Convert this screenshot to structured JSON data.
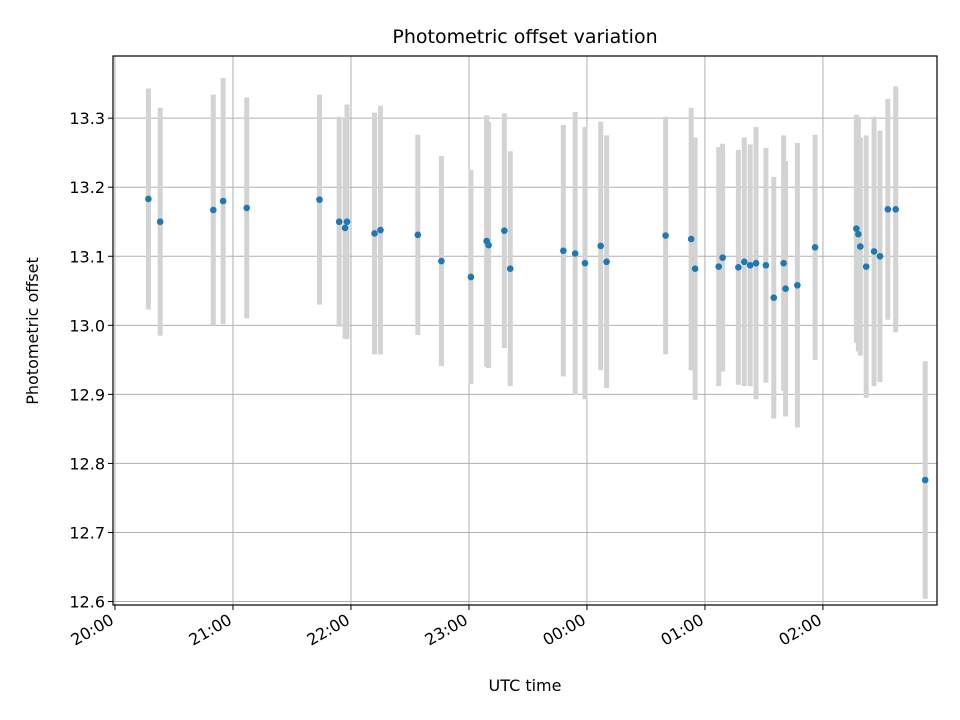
{
  "chart_data": {
    "type": "scatter",
    "title": "Photometric offset variation",
    "xlabel": "UTC time",
    "ylabel": "Photometric offset",
    "grid": true,
    "colors": {
      "point": "#1f77b4",
      "errorbar": "#d3d3d3",
      "grid": "#b0b0b0"
    },
    "x_ticks": [
      "20:00",
      "21:00",
      "22:00",
      "23:00",
      "00:00",
      "01:00",
      "02:00"
    ],
    "y_ticks": [
      "12.6",
      "12.7",
      "12.8",
      "12.9",
      "13.0",
      "13.1",
      "13.2",
      "13.3"
    ],
    "xlim": [
      "19:59",
      "26:58"
    ],
    "ylim": [
      12.595,
      13.39
    ],
    "series": [
      {
        "x": [
          "20:17",
          "20:23",
          "20:50",
          "20:55",
          "21:07",
          "21:44",
          "21:54",
          "21:57",
          "21:58",
          "22:12",
          "22:15",
          "22:34",
          "22:46",
          "23:01",
          "23:09",
          "23:10",
          "23:18",
          "23:21",
          "23:48",
          "23:54",
          "23:59",
          "24:07",
          "24:10",
          "24:40",
          "24:53",
          "24:55",
          "25:07",
          "25:09",
          "25:17",
          "25:20",
          "25:23",
          "25:26",
          "25:31",
          "25:35",
          "25:40",
          "25:41",
          "25:47",
          "25:56",
          "26:17",
          "26:18",
          "26:19",
          "26:22",
          "26:26",
          "26:29",
          "26:33",
          "26:37",
          "26:52"
        ],
        "y": [
          13.183,
          13.15,
          13.167,
          13.18,
          13.17,
          13.182,
          13.15,
          13.141,
          13.15,
          13.133,
          13.138,
          13.131,
          13.093,
          13.07,
          13.122,
          13.116,
          13.137,
          13.082,
          13.108,
          13.104,
          13.09,
          13.115,
          13.092,
          13.13,
          13.125,
          13.082,
          13.085,
          13.098,
          13.084,
          13.092,
          13.087,
          13.09,
          13.087,
          13.04,
          13.09,
          13.053,
          13.058,
          13.113,
          13.14,
          13.132,
          13.114,
          13.085,
          13.107,
          13.1,
          13.168,
          13.168,
          12.776
        ],
        "err": [
          0.16,
          0.165,
          0.167,
          0.178,
          0.16,
          0.152,
          0.152,
          0.16,
          0.17,
          0.175,
          0.18,
          0.145,
          0.152,
          0.155,
          0.182,
          0.178,
          0.17,
          0.17,
          0.182,
          0.205,
          0.197,
          0.18,
          0.183,
          0.172,
          0.19,
          0.19,
          0.173,
          0.165,
          0.17,
          0.18,
          0.175,
          0.197,
          0.17,
          0.175,
          0.185,
          0.185,
          0.206,
          0.163,
          0.165,
          0.17,
          0.158,
          0.19,
          0.195,
          0.182,
          0.16,
          0.178,
          0.172
        ]
      }
    ]
  }
}
